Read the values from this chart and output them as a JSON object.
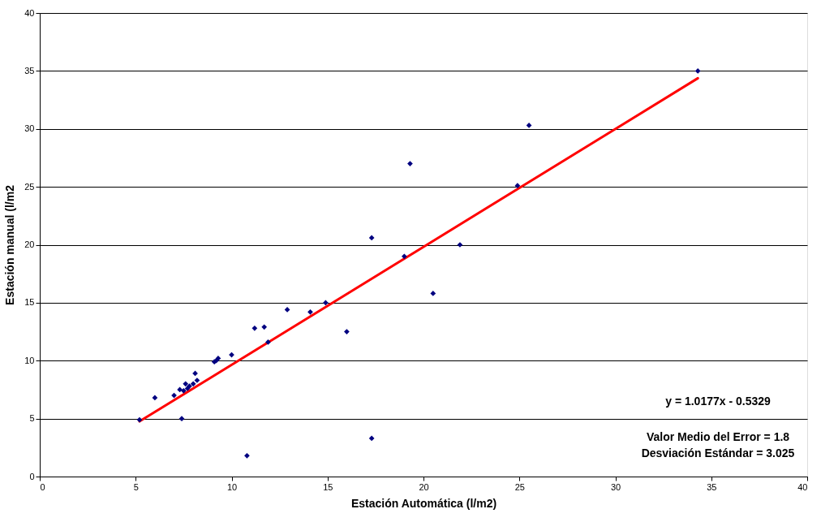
{
  "chart_data": {
    "type": "scatter",
    "xlabel": "Estación Automática (l/m2)",
    "ylabel": "Estación manual (l/m2",
    "xlim": [
      0,
      40
    ],
    "ylim": [
      0,
      40
    ],
    "xticks": [
      0,
      5,
      10,
      15,
      20,
      25,
      30,
      35,
      40
    ],
    "yticks": [
      0,
      5,
      10,
      15,
      20,
      25,
      30,
      35,
      40
    ],
    "grid": "y",
    "series": [
      {
        "marker": "diamond",
        "color": "#000080",
        "x": [
          5.2,
          6.0,
          7.0,
          7.3,
          7.5,
          7.6,
          7.7,
          7.8,
          8.0,
          8.1,
          8.2,
          7.4,
          9.1,
          9.2,
          9.3,
          10.0,
          10.8,
          11.2,
          11.7,
          11.9,
          12.9,
          14.1,
          14.9,
          16.0,
          17.3,
          17.3,
          19.0,
          19.3,
          20.5,
          21.9,
          24.9,
          25.5,
          34.3
        ],
        "values": [
          4.9,
          6.8,
          7.0,
          7.5,
          7.4,
          8.0,
          7.6,
          7.8,
          8.0,
          8.9,
          8.3,
          5.0,
          9.9,
          10.0,
          10.2,
          10.5,
          1.8,
          12.8,
          12.9,
          11.6,
          14.4,
          14.2,
          15.0,
          12.5,
          20.6,
          3.3,
          19.0,
          27.0,
          15.8,
          20.0,
          25.1,
          30.3,
          35.0
        ]
      },
      {
        "type": "line",
        "marker": "none",
        "line_style": "solid",
        "color": "#ff0000",
        "x": [
          5.2,
          34.3
        ],
        "values": [
          4.76,
          34.37
        ]
      }
    ],
    "annotations": [
      "y = 1.0177x - 0.5329",
      "Valor Medio del Error = 1.8",
      "Desviación Estándar = 3.025"
    ]
  }
}
